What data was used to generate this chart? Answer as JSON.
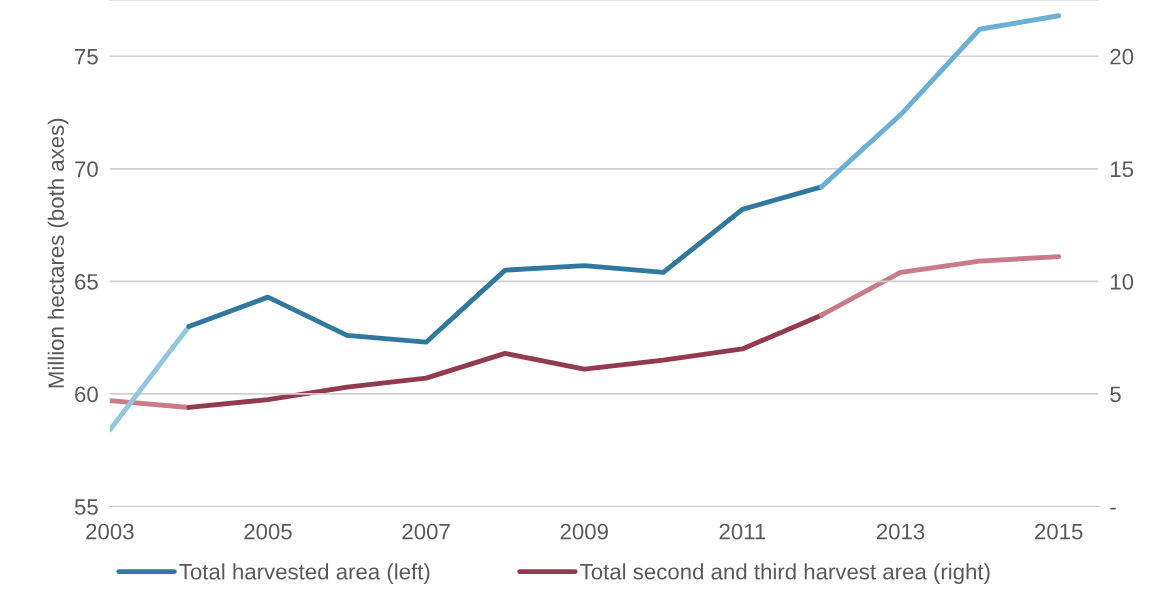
{
  "chart_data": {
    "type": "line",
    "ylabel": "Million hectares (both axes)",
    "xlim": [
      2003,
      2015.5
    ],
    "xticks": [
      2003,
      2005,
      2007,
      2009,
      2011,
      2013,
      2015
    ],
    "ylim": [
      55,
      77.5
    ],
    "yticks": [
      55,
      60,
      65,
      70,
      75
    ],
    "y2lim": [
      0,
      22.5
    ],
    "y2ticks": [
      {
        "value": 0,
        "label": "-"
      },
      5,
      10,
      15,
      20
    ],
    "grid": "y",
    "legend": "bottom",
    "line_style": "solid",
    "marker": "none",
    "series": [
      {
        "color": "#94c6e0",
        "x": [
          2003,
          2004
        ],
        "values": [
          58.4,
          63.0
        ]
      },
      {
        "name": "Total harvested area (left)",
        "color": "#31789e",
        "x": [
          2004,
          2005,
          2006,
          2007,
          2008,
          2009,
          2010,
          2011,
          2012
        ],
        "values": [
          63.0,
          64.3,
          62.6,
          62.3,
          65.5,
          65.7,
          65.4,
          68.2,
          69.2
        ]
      },
      {
        "color": "#6aafd6",
        "x": [
          2012,
          2013,
          2014,
          2015
        ],
        "values": [
          69.2,
          72.4,
          76.2,
          76.8
        ]
      },
      {
        "color": "#c97c88",
        "axis": "y2",
        "x": [
          2003,
          2004
        ],
        "values": [
          4.7,
          4.4
        ]
      },
      {
        "name": "Total second and third harvest area (right)",
        "color": "#923a4e",
        "axis": "y2",
        "x": [
          2004,
          2005,
          2006,
          2007,
          2008,
          2009,
          2010,
          2011,
          2012
        ],
        "values": [
          4.4,
          4.75,
          5.3,
          5.7,
          6.8,
          6.1,
          6.5,
          7.0,
          8.5
        ]
      },
      {
        "color": "#c97c88",
        "axis": "y2",
        "x": [
          2012,
          2013,
          2014,
          2015
        ],
        "values": [
          8.5,
          10.4,
          10.9,
          11.1
        ]
      }
    ]
  }
}
